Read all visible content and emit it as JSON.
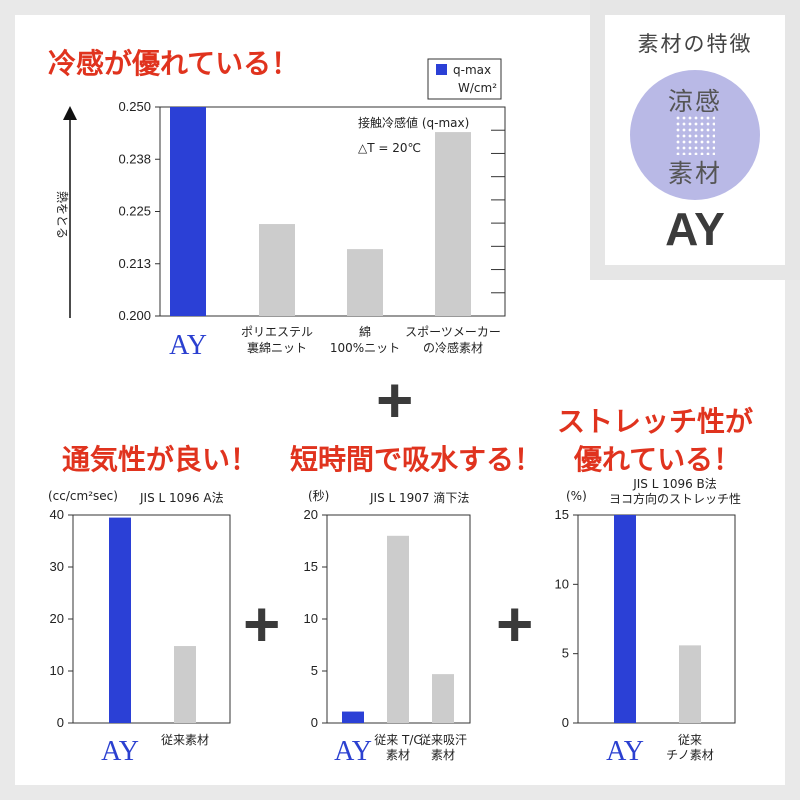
{
  "colors": {
    "accent_bar": "#2b40d6",
    "gray_bar": "#cccccc",
    "heading_red": "#e0331e",
    "badge_circle": "#b9b9e6"
  },
  "badge": {
    "title": "素材の特徴",
    "line1": "涼感",
    "line2": "素材",
    "name": "AY"
  },
  "plus_symbol": "+",
  "headings": {
    "top": "冷感が優れている！",
    "airflow": "通気性が良い！",
    "absorb": "短時間で吸水する！",
    "stretch_line1": "ストレッチ性が",
    "stretch_line2": "優れている！"
  },
  "chart_data": [
    {
      "type": "bar",
      "title": "接触冷感値 (q-max)",
      "subtitle": "△T = 20℃",
      "ylabel": "熱をとる",
      "legend": [
        "q-max",
        "W/cm²"
      ],
      "legend_position": "top-right",
      "categories": [
        "AY",
        "ポリエステル\n裏綿ニット",
        "綿\n100%ニット",
        "スポーツメーカー\nの冷感素材"
      ],
      "values": [
        0.25,
        0.222,
        0.216,
        0.244
      ],
      "ylim": [
        0.2,
        0.25
      ],
      "yticks": [
        "0.200",
        "0.213",
        "0.225",
        "0.238",
        "0.250"
      ]
    },
    {
      "type": "bar",
      "title": "JIS L 1096  A法",
      "ylabel": "(cc/cm²sec)",
      "categories": [
        "AY",
        "従来素材"
      ],
      "values": [
        39.5,
        14.8
      ],
      "ylim": [
        0,
        40
      ],
      "yticks": [
        "0",
        "10",
        "20",
        "30",
        "40"
      ]
    },
    {
      "type": "bar",
      "title": "JIS L 1907  滴下法",
      "ylabel": "(秒)",
      "categories": [
        "AY",
        "従来 T/C\n素材",
        "従来吸汗\n素材"
      ],
      "values": [
        1.1,
        18.0,
        4.7
      ],
      "ylim": [
        0,
        20
      ],
      "yticks": [
        "0",
        "5",
        "10",
        "15",
        "20"
      ]
    },
    {
      "type": "bar",
      "title": "JIS L 1096  B法\nヨコ方向のストレッチ性",
      "ylabel": "(%)",
      "categories": [
        "AY",
        "従来\nチノ素材"
      ],
      "values": [
        15.0,
        5.6
      ],
      "ylim": [
        0,
        15
      ],
      "yticks": [
        "0",
        "5",
        "10",
        "15"
      ]
    }
  ]
}
